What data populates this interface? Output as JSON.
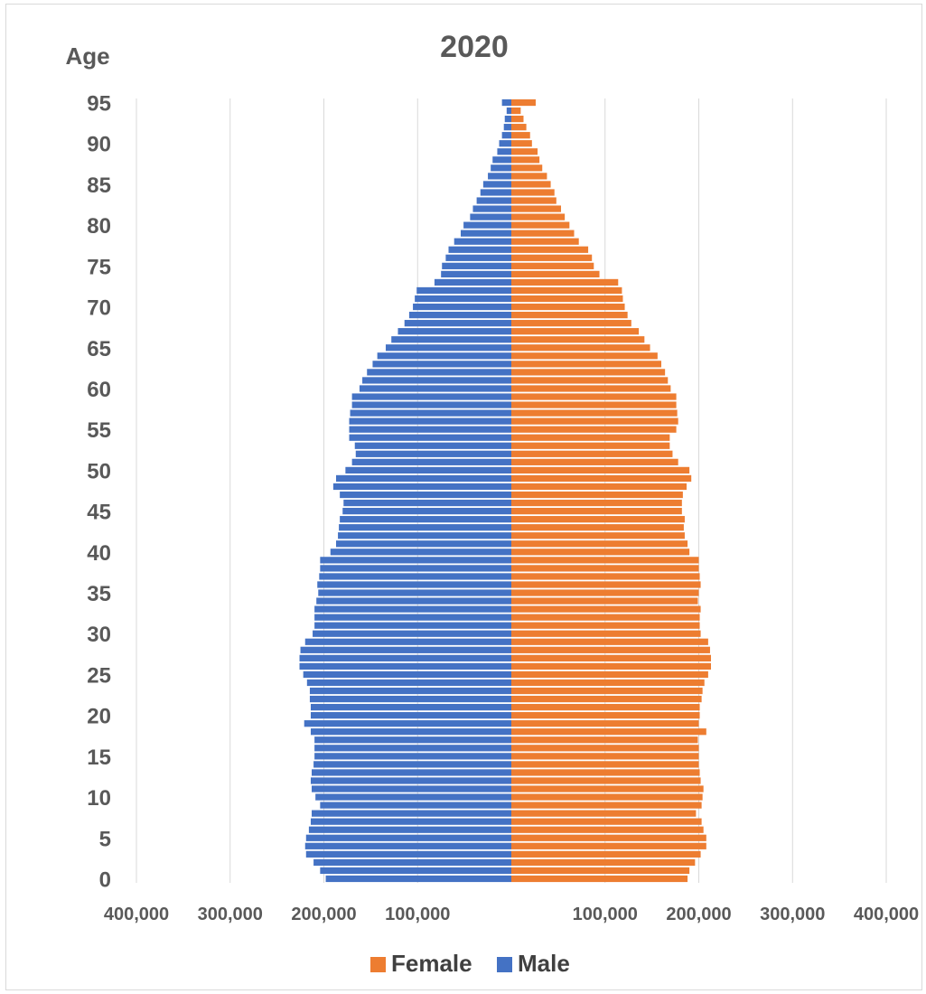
{
  "chart_data": {
    "type": "bar",
    "orientation": "horizontal",
    "title": "2020",
    "ylabel": "Age",
    "xlim": [
      -400000,
      400000
    ],
    "x_tick_values": [
      -400000,
      -300000,
      -200000,
      -100000,
      100000,
      200000,
      300000,
      400000
    ],
    "x_tick_labels": [
      "400,000",
      "300,000",
      "200,000",
      "100,000",
      "100,000",
      "200,000",
      "300,000",
      "400,000"
    ],
    "y_tick_labels": [
      "0",
      "5",
      "10",
      "15",
      "20",
      "25",
      "30",
      "35",
      "40",
      "45",
      "50",
      "55",
      "60",
      "65",
      "70",
      "75",
      "80",
      "85",
      "90",
      "95"
    ],
    "grid": "vertical",
    "legend_position": "bottom",
    "categories": [
      0,
      1,
      2,
      3,
      4,
      5,
      6,
      7,
      8,
      9,
      10,
      11,
      12,
      13,
      14,
      15,
      16,
      17,
      18,
      19,
      20,
      21,
      22,
      23,
      24,
      25,
      26,
      27,
      28,
      29,
      30,
      31,
      32,
      33,
      34,
      35,
      36,
      37,
      38,
      39,
      40,
      41,
      42,
      43,
      44,
      45,
      46,
      47,
      48,
      49,
      50,
      51,
      52,
      53,
      54,
      55,
      56,
      57,
      58,
      59,
      60,
      61,
      62,
      63,
      64,
      65,
      66,
      67,
      68,
      69,
      70,
      71,
      72,
      73,
      74,
      75,
      76,
      77,
      78,
      79,
      80,
      81,
      82,
      83,
      84,
      85,
      86,
      87,
      88,
      89,
      90,
      91,
      92,
      93,
      94,
      95
    ],
    "series": [
      {
        "name": "Female",
        "color": "#ED7D31",
        "values": [
          188000,
          190000,
          196000,
          202000,
          208000,
          208000,
          205000,
          203000,
          197000,
          203000,
          204000,
          205000,
          202000,
          201000,
          200000,
          200000,
          200000,
          199000,
          208000,
          200000,
          201000,
          201000,
          203000,
          204000,
          206000,
          210000,
          213000,
          213000,
          212000,
          210000,
          202000,
          201000,
          201000,
          202000,
          199000,
          200000,
          202000,
          201000,
          200000,
          200000,
          190000,
          188000,
          185000,
          184000,
          185000,
          182000,
          182000,
          183000,
          187000,
          192000,
          190000,
          178000,
          172000,
          169000,
          169000,
          176000,
          178000,
          177000,
          176000,
          176000,
          170000,
          167000,
          164000,
          160000,
          156000,
          148000,
          142000,
          136000,
          128000,
          124000,
          121000,
          119000,
          118000,
          114000,
          94000,
          88000,
          86000,
          82000,
          72000,
          67000,
          62000,
          57000,
          53000,
          48000,
          46000,
          42000,
          38000,
          33000,
          30000,
          28000,
          22000,
          20000,
          16000,
          13000,
          10000,
          26000
        ]
      },
      {
        "name": "Male",
        "color": "#4472C4",
        "values": [
          198000,
          204000,
          211000,
          219000,
          220000,
          219000,
          216000,
          214000,
          213000,
          204000,
          209000,
          213000,
          214000,
          213000,
          211000,
          210000,
          210000,
          210000,
          214000,
          221000,
          214000,
          214000,
          215000,
          215000,
          218000,
          222000,
          226000,
          226000,
          225000,
          220000,
          212000,
          210000,
          210000,
          210000,
          208000,
          206000,
          207000,
          205000,
          204000,
          204000,
          193000,
          187000,
          185000,
          184000,
          183000,
          180000,
          179000,
          183000,
          190000,
          187000,
          177000,
          170000,
          166000,
          167000,
          173000,
          173000,
          173000,
          172000,
          170000,
          170000,
          162000,
          159000,
          154000,
          148000,
          143000,
          134000,
          128000,
          121000,
          114000,
          109000,
          105000,
          103000,
          101000,
          82000,
          75000,
          74000,
          70000,
          67000,
          61000,
          54000,
          51000,
          44000,
          41000,
          37000,
          33000,
          30000,
          25000,
          22000,
          20000,
          15000,
          13000,
          10000,
          8000,
          7000,
          5000,
          10000
        ]
      }
    ]
  }
}
